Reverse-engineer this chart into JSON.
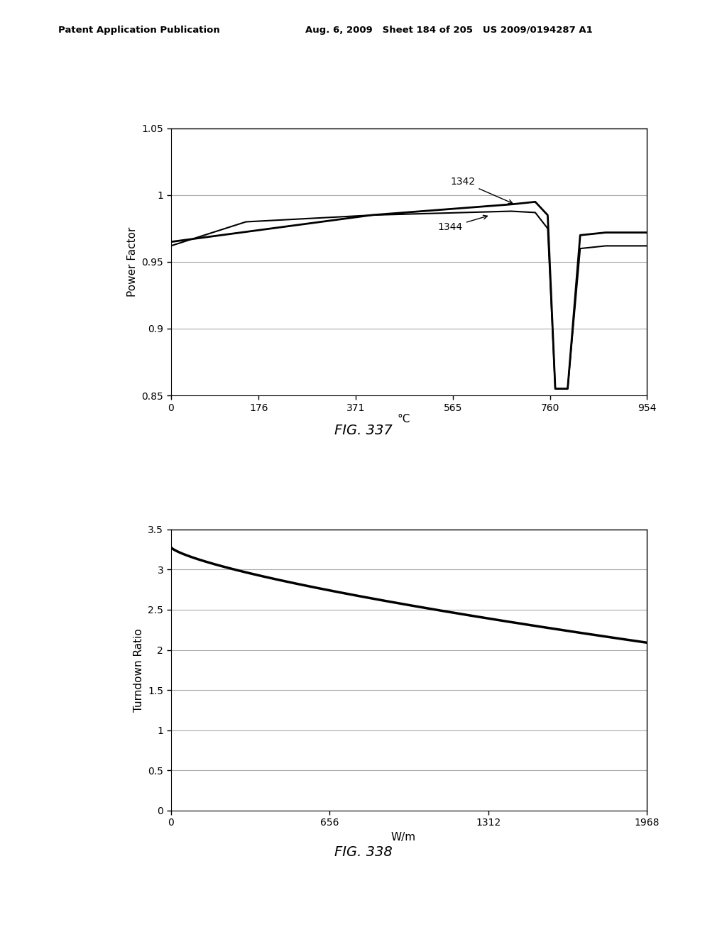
{
  "fig1": {
    "title": "FIG. 337",
    "ylabel": "Power Factor",
    "xlabel": "°C",
    "xticks": [
      0,
      176,
      371,
      565,
      760,
      954
    ],
    "yticks": [
      0.85,
      0.9,
      0.95,
      1.0,
      1.05
    ],
    "xlim": [
      0,
      954
    ],
    "ylim": [
      0.85,
      1.05
    ],
    "label1": "1342",
    "label2": "1344",
    "grid_color": "#aaaaaa",
    "line_color": "#000000"
  },
  "fig2": {
    "title": "FIG. 338",
    "ylabel": "Turndown Ratio",
    "xlabel": "W/m",
    "xticks": [
      0,
      656,
      1312,
      1968
    ],
    "yticks": [
      0,
      0.5,
      1.0,
      1.5,
      2.0,
      2.5,
      3.0,
      3.5
    ],
    "xlim": [
      0,
      1968
    ],
    "ylim": [
      0,
      3.5
    ],
    "grid_color": "#aaaaaa",
    "line_color": "#000000"
  },
  "header": "Patent Application Publication",
  "header2": "Aug. 6, 2009   Sheet 184 of 205   US 2009/0194287 A1",
  "bg_color": "#ffffff"
}
